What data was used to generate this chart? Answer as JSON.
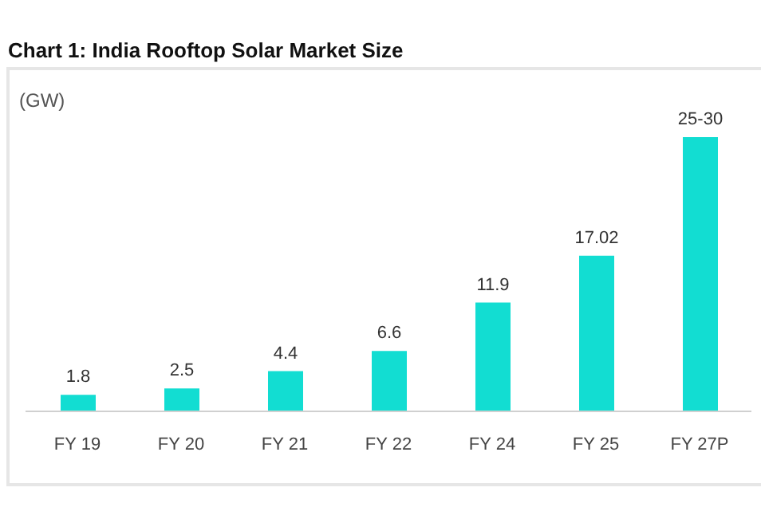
{
  "chart_data": {
    "type": "bar",
    "title": "Chart 1: India Rooftop Solar Market Size",
    "ylabel": "(GW)",
    "categories": [
      "FY 19",
      "FY 20",
      "FY 21",
      "FY 22",
      "FY 24",
      "FY 25",
      "FY 27P"
    ],
    "values": [
      1.8,
      2.5,
      4.4,
      6.6,
      11.9,
      17.02,
      30
    ],
    "value_labels": [
      "1.8",
      "2.5",
      "4.4",
      "6.6",
      "11.9",
      "17.02",
      "25-30"
    ],
    "color": "#12ddd2",
    "grid": false,
    "legend": false
  }
}
